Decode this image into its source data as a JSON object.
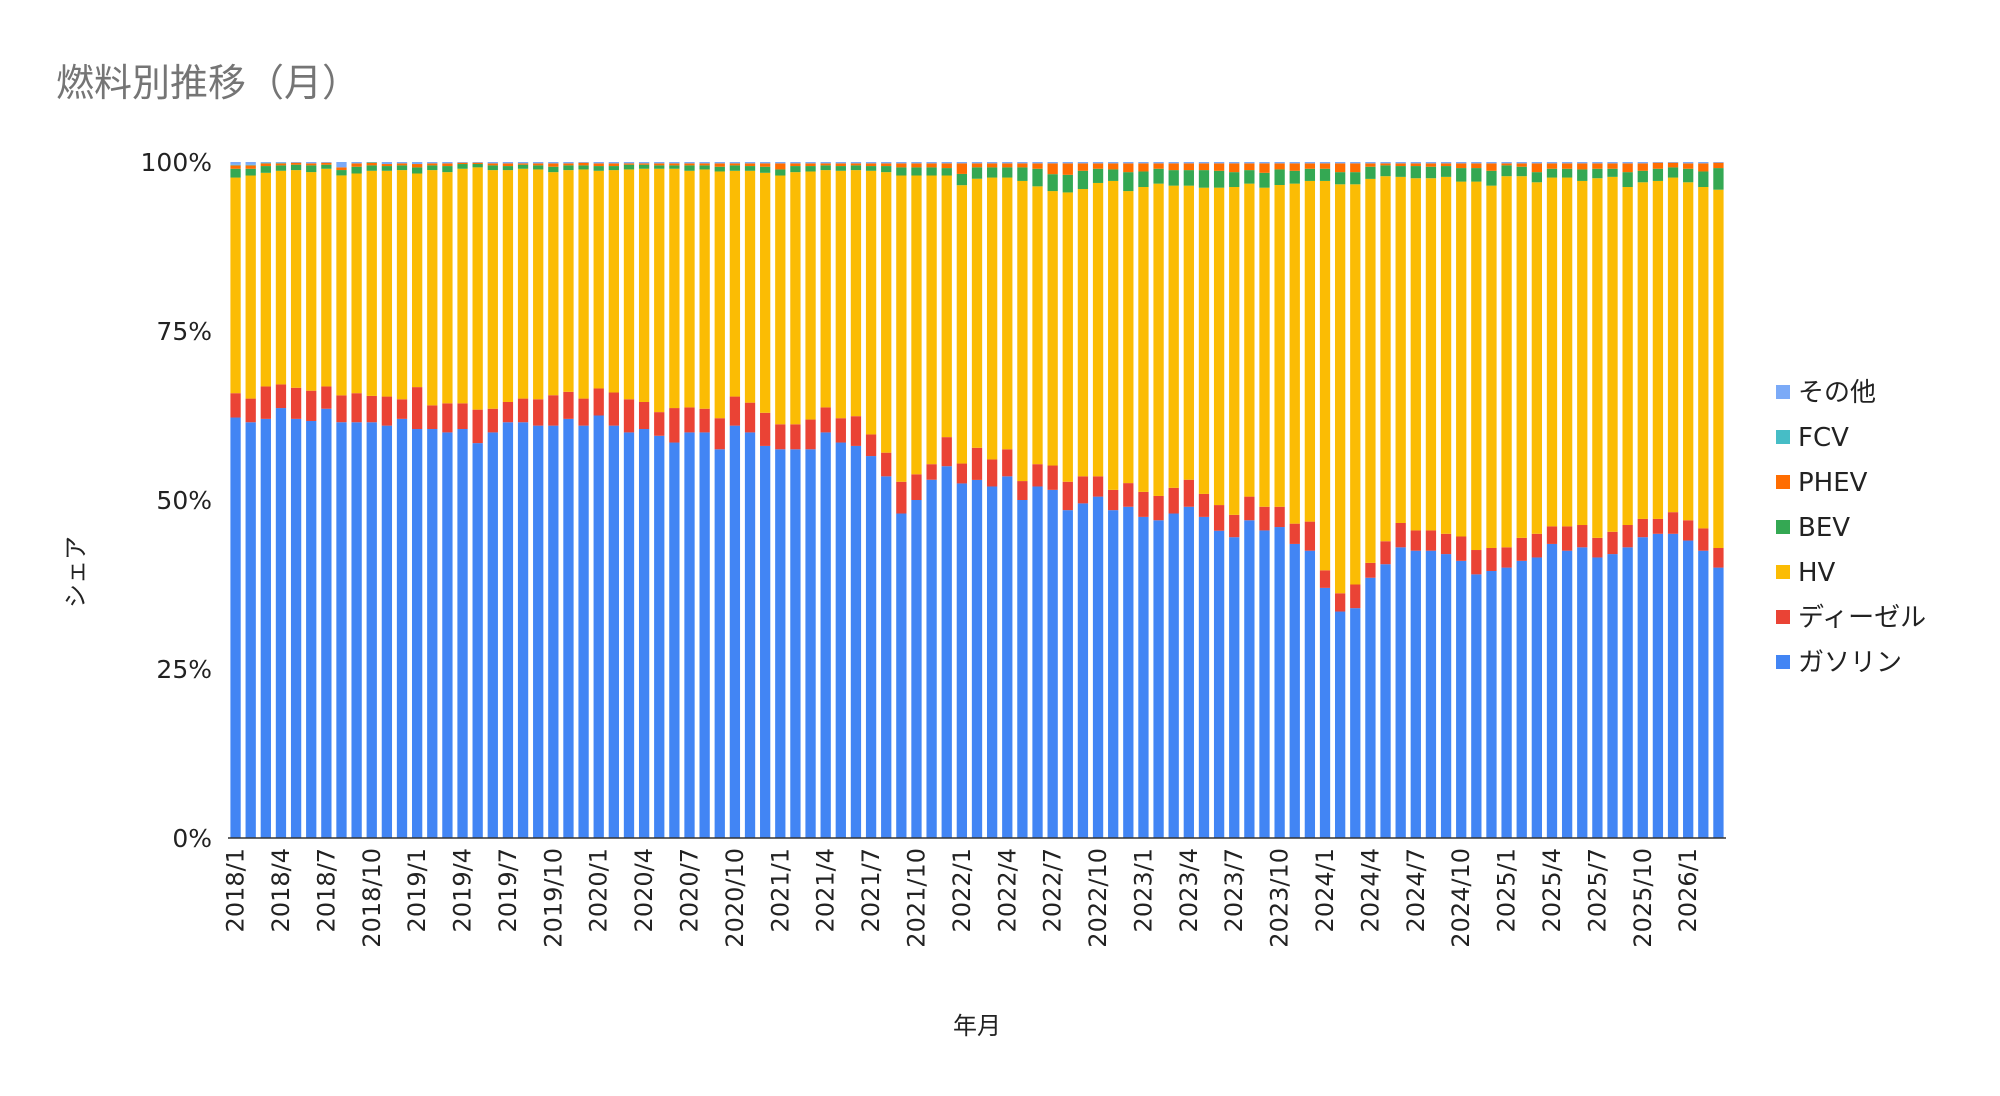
{
  "chart_data": {
    "type": "bar",
    "stacked": true,
    "normalized": true,
    "title": "燃料別推移（月）",
    "xlabel": "年月",
    "ylabel": "シェア",
    "ylim": [
      0,
      100
    ],
    "yticks": [
      "0%",
      "25%",
      "50%",
      "75%",
      "100%"
    ],
    "grid": false,
    "legend_position": "right",
    "x_start": "2018/1",
    "x_end": "2026/3",
    "x_tick_labels": [
      "2018/1",
      "2018/4",
      "2018/7",
      "2018/10",
      "2019/1",
      "2019/4",
      "2019/7",
      "2019/10",
      "2020/1",
      "2020/4",
      "2020/7",
      "2020/10",
      "2021/1",
      "2021/4",
      "2021/7",
      "2021/10",
      "2022/1",
      "2022/4",
      "2022/7",
      "2022/10",
      "2023/1",
      "2023/4",
      "2023/7",
      "2023/10",
      "2024/1",
      "2024/4",
      "2024/7",
      "2024/10",
      "2025/1",
      "2025/4",
      "2025/7",
      "2025/10",
      "2026/1"
    ],
    "series": [
      {
        "name": "ガソリン",
        "color": "#4285f4",
        "values": [
          62.2,
          61.5,
          62.0,
          63.6,
          62.0,
          62.0,
          63.5,
          62.0,
          61.5,
          61.5,
          61.0,
          62.0,
          60.5,
          60.5,
          60.0,
          60.5,
          59.0,
          60.0,
          61.5,
          61.5,
          61.0,
          61.0,
          62.0,
          61.0,
          62.5,
          61.0,
          60.0,
          60.5,
          59.5,
          58.5,
          60.0,
          60.0,
          57.5,
          61.0,
          60.0,
          58.0,
          57.5,
          57.5,
          57.5,
          60.0,
          58.5,
          58.0,
          56.5,
          53.5,
          48.0,
          50.0,
          53.0,
          55.0,
          53.5,
          53.5,
          52.0,
          53.5,
          50.0,
          52.0,
          51.5,
          48.5,
          49.5,
          50.5,
          48.5,
          49.0,
          47.5,
          47.0,
          48.0,
          49.0,
          47.5,
          45.5,
          44.5,
          47.0,
          45.5,
          46.0,
          43.5,
          42.5,
          37.0,
          33.5,
          34.0,
          38.5,
          40.5,
          43.0,
          42.5,
          42.5,
          42.0,
          41.0,
          39.0,
          39.5,
          40.0,
          41.0,
          41.5,
          43.5,
          42.5,
          43.0,
          41.5,
          42.0,
          43.0,
          44.5,
          45.0,
          45.0,
          44.0,
          42.5,
          40.0
        ]
      },
      {
        "name": "ディーゼル",
        "color": "#ea4335",
        "values": [
          3.6,
          3.5,
          4.8,
          3.5,
          4.6,
          4.5,
          3.3,
          4.0,
          4.3,
          3.9,
          4.3,
          2.9,
          6.2,
          3.5,
          4.3,
          3.8,
          5.0,
          3.5,
          3.0,
          3.5,
          3.9,
          4.5,
          4.0,
          4.0,
          4.0,
          4.9,
          4.9,
          4.0,
          3.5,
          5.1,
          3.7,
          3.5,
          4.6,
          4.3,
          4.4,
          4.9,
          3.7,
          3.7,
          4.4,
          3.7,
          3.6,
          4.4,
          3.2,
          3.5,
          4.7,
          3.8,
          2.3,
          4.3,
          3.0,
          4.8,
          4.0,
          4.0,
          2.8,
          3.3,
          3.6,
          4.2,
          4.0,
          3.0,
          3.0,
          3.5,
          3.7,
          3.6,
          3.8,
          4.0,
          3.4,
          3.8,
          3.3,
          3.5,
          3.5,
          3.0,
          3.0,
          4.3,
          2.6,
          2.7,
          3.5,
          2.2,
          3.4,
          3.6,
          3.0,
          3.0,
          3.0,
          3.6,
          3.6,
          3.4,
          3.0,
          3.4,
          3.5,
          2.6,
          3.6,
          3.3,
          2.9,
          3.3,
          3.3,
          2.7,
          2.2,
          3.2,
          3.0,
          3.3,
          2.9
        ]
      },
      {
        "name": "HV",
        "color": "#fbbc04",
        "values": [
          31.9,
          33.0,
          31.6,
          31.6,
          32.2,
          32.5,
          32.2,
          32.8,
          32.5,
          33.3,
          33.4,
          33.9,
          31.6,
          34.8,
          34.2,
          34.7,
          36.2,
          35.3,
          34.3,
          34.0,
          34.0,
          33.0,
          32.8,
          33.9,
          32.2,
          32.9,
          34.0,
          34.5,
          36.0,
          35.4,
          35.0,
          35.4,
          36.5,
          33.4,
          34.3,
          35.5,
          36.8,
          37.3,
          36.7,
          35.1,
          36.6,
          36.4,
          39.0,
          41.5,
          45.3,
          44.2,
          42.7,
          38.7,
          42.0,
          40.2,
          41.7,
          40.2,
          44.4,
          41.1,
          40.6,
          42.8,
          42.5,
          43.4,
          45.7,
          43.2,
          45.1,
          46.2,
          44.7,
          43.5,
          45.3,
          47.0,
          48.5,
          46.3,
          47.2,
          47.6,
          50.3,
          50.4,
          57.6,
          60.5,
          59.2,
          56.8,
          54.0,
          51.2,
          52.1,
          52.1,
          52.8,
          52.5,
          54.5,
          53.6,
          54.9,
          53.5,
          52.0,
          51.6,
          51.6,
          50.9,
          53.2,
          52.5,
          50.0,
          49.8,
          50.0,
          49.5,
          50.0,
          50.5,
          53.0
        ]
      },
      {
        "name": "BEV",
        "color": "#34a853",
        "values": [
          1.3,
          1.0,
          1.0,
          0.8,
          0.8,
          1.0,
          0.6,
          0.8,
          1.0,
          0.8,
          0.7,
          0.7,
          0.9,
          0.7,
          0.9,
          0.7,
          0.5,
          0.7,
          0.6,
          0.6,
          0.6,
          0.8,
          0.7,
          0.6,
          0.7,
          0.6,
          0.7,
          0.6,
          0.5,
          0.5,
          0.8,
          0.6,
          0.7,
          0.8,
          0.7,
          0.9,
          0.9,
          0.9,
          0.8,
          0.7,
          0.7,
          0.7,
          0.7,
          0.9,
          1.2,
          1.2,
          1.2,
          1.1,
          1.7,
          1.7,
          1.5,
          1.5,
          2.0,
          2.6,
          2.5,
          2.6,
          2.7,
          2.1,
          1.7,
          2.8,
          2.3,
          2.2,
          2.3,
          2.3,
          2.6,
          2.5,
          2.2,
          2.0,
          2.2,
          2.3,
          1.9,
          1.8,
          1.8,
          1.8,
          1.8,
          1.8,
          1.6,
          1.6,
          1.8,
          1.7,
          1.6,
          2.0,
          2.0,
          2.2,
          1.6,
          1.4,
          1.5,
          1.3,
          1.3,
          1.7,
          1.4,
          1.2,
          2.2,
          1.7,
          1.8,
          1.5,
          2.0,
          2.3,
          3.2
        ]
      },
      {
        "name": "PHEV",
        "color": "#ff6d01",
        "values": [
          0.5,
          0.5,
          0.4,
          0.3,
          0.3,
          0.3,
          0.3,
          0.4,
          0.5,
          0.4,
          0.3,
          0.3,
          0.5,
          0.3,
          0.4,
          0.2,
          0.2,
          0.3,
          0.4,
          0.2,
          0.3,
          0.5,
          0.3,
          0.4,
          0.4,
          0.4,
          0.2,
          0.2,
          0.3,
          0.3,
          0.3,
          0.3,
          0.5,
          0.3,
          0.4,
          0.5,
          0.9,
          0.4,
          0.4,
          0.3,
          0.4,
          0.3,
          0.4,
          0.4,
          0.6,
          0.6,
          0.6,
          0.7,
          1.6,
          0.6,
          0.6,
          0.6,
          0.6,
          0.8,
          1.6,
          1.7,
          1.1,
          0.8,
          0.9,
          1.3,
          1.2,
          0.8,
          1.0,
          1.0,
          1.0,
          1.1,
          1.3,
          1.0,
          1.4,
          0.9,
          1.1,
          0.8,
          0.8,
          1.3,
          1.3,
          0.5,
          0.3,
          0.4,
          0.4,
          0.5,
          0.4,
          0.7,
          0.7,
          1.1,
          0.3,
          0.5,
          1.3,
          0.8,
          0.8,
          0.9,
          0.8,
          0.8,
          1.3,
          1.1,
          0.9,
          0.7,
          0.8,
          1.2,
          0.8
        ]
      },
      {
        "name": "FCV",
        "color": "#46bdc6",
        "values": [
          0.1,
          0.1,
          0.1,
          0.1,
          0.0,
          0.0,
          0.0,
          0.0,
          0.0,
          0.1,
          0.0,
          0.0,
          0.0,
          0.0,
          0.0,
          0.0,
          0.0,
          0.0,
          0.0,
          0.0,
          0.0,
          0.0,
          0.0,
          0.0,
          0.0,
          0.0,
          0.0,
          0.0,
          0.0,
          0.0,
          0.0,
          0.0,
          0.0,
          0.0,
          0.0,
          0.0,
          0.0,
          0.0,
          0.0,
          0.0,
          0.0,
          0.0,
          0.0,
          0.0,
          0.0,
          0.0,
          0.0,
          0.0,
          0.0,
          0.0,
          0.0,
          0.0,
          0.0,
          0.0,
          0.0,
          0.0,
          0.0,
          0.0,
          0.0,
          0.0,
          0.0,
          0.0,
          0.0,
          0.0,
          0.0,
          0.0,
          0.0,
          0.0,
          0.0,
          0.0,
          0.0,
          0.0,
          0.0,
          0.0,
          0.0,
          0.0,
          0.0,
          0.0,
          0.0,
          0.0,
          0.0,
          0.0,
          0.0,
          0.0,
          0.0,
          0.0,
          0.0,
          0.0,
          0.0,
          0.0,
          0.0,
          0.0,
          0.0,
          0.0,
          0.0,
          0.0,
          0.0,
          0.0,
          0.0
        ]
      },
      {
        "name": "その他",
        "color": "#7baaf7",
        "values": [
          0.4,
          0.4,
          0.1,
          0.1,
          0.1,
          0.2,
          0.1,
          0.8,
          0.2,
          0.0,
          0.3,
          0.2,
          0.3,
          0.2,
          0.2,
          0.1,
          0.1,
          0.2,
          0.2,
          0.2,
          0.2,
          0.2,
          0.2,
          0.1,
          0.2,
          0.2,
          0.2,
          0.2,
          0.2,
          0.2,
          0.2,
          0.2,
          0.2,
          0.2,
          0.2,
          0.2,
          0.2,
          0.2,
          0.2,
          0.2,
          0.2,
          0.2,
          0.2,
          0.2,
          0.2,
          0.2,
          0.2,
          0.2,
          0.2,
          0.2,
          0.2,
          0.2,
          0.2,
          0.2,
          0.2,
          0.2,
          0.2,
          0.2,
          0.2,
          0.2,
          0.2,
          0.2,
          0.2,
          0.2,
          0.2,
          0.2,
          0.2,
          0.2,
          0.2,
          0.2,
          0.2,
          0.2,
          0.2,
          0.2,
          0.2,
          0.2,
          0.2,
          0.2,
          0.2,
          0.2,
          0.2,
          0.2,
          0.2,
          0.2,
          0.2,
          0.2,
          0.2,
          0.2,
          0.2,
          0.2,
          0.2,
          0.2,
          0.2,
          0.2,
          0.1,
          0.1,
          0.2,
          0.2,
          0.1
        ]
      }
    ],
    "legend_order": [
      "その他",
      "FCV",
      "PHEV",
      "BEV",
      "HV",
      "ディーゼル",
      "ガソリン"
    ]
  }
}
